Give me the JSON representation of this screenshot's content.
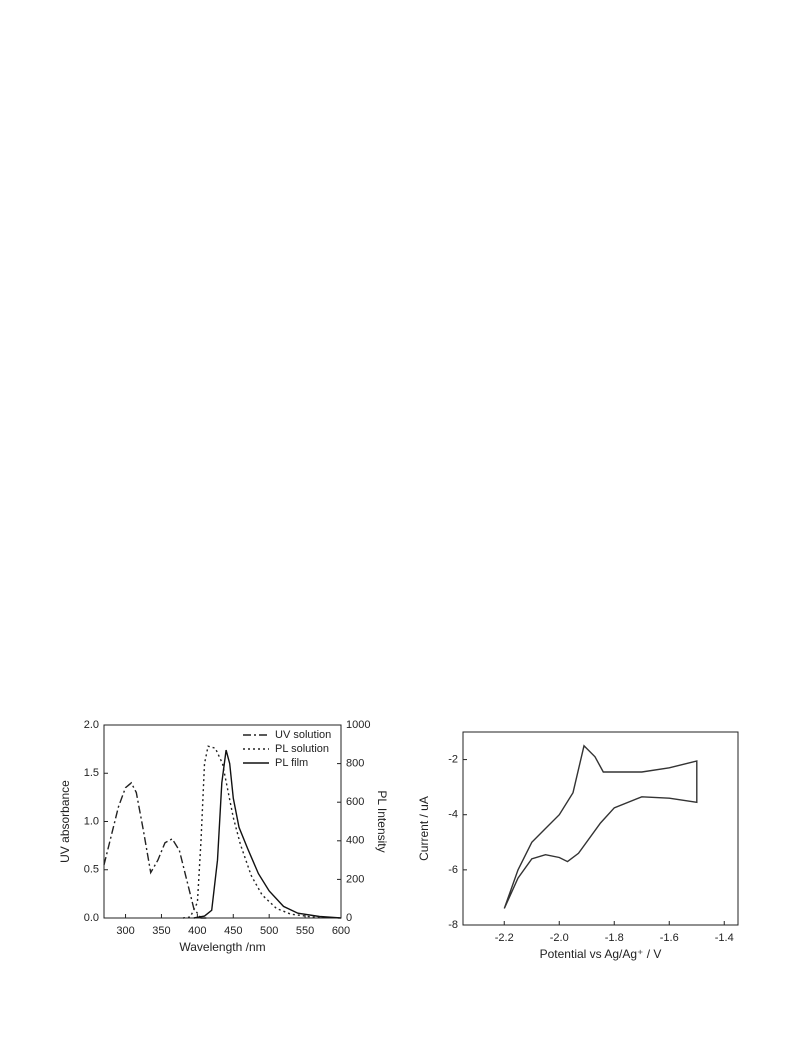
{
  "chart_data": [
    {
      "type": "line",
      "xlabel": "Wavelength /nm",
      "ylabel": "UV absorbance",
      "y2label": "PL Intensity",
      "xlim": [
        270,
        600
      ],
      "xticks": [
        300,
        350,
        400,
        450,
        500,
        550,
        600
      ],
      "ylim": [
        0,
        2
      ],
      "yticks": [
        {
          "value": 0,
          "label": "0.0"
        },
        {
          "value": 0.5,
          "label": "0.5"
        },
        {
          "value": 1,
          "label": "1.0"
        },
        {
          "value": 1.5,
          "label": "1.5"
        },
        {
          "value": 2,
          "label": "2.0"
        }
      ],
      "y2lim": [
        0,
        1000
      ],
      "y2ticks": [
        0,
        200,
        400,
        600,
        800,
        1000
      ],
      "legend": "upper right",
      "series": [
        {
          "name": "UV solution",
          "color": "#222222",
          "dash": "dashdot",
          "x": [
            270,
            280,
            290,
            300,
            308,
            315,
            325,
            335,
            345,
            355,
            365,
            375,
            385,
            395,
            405,
            415
          ],
          "values": [
            0.55,
            0.85,
            1.15,
            1.35,
            1.4,
            1.3,
            0.9,
            0.47,
            0.6,
            0.78,
            0.82,
            0.7,
            0.4,
            0.1,
            0.0,
            0.0
          ]
        },
        {
          "name": "PL solution",
          "color": "#222222",
          "dash": "dotted",
          "axis": "y2",
          "x": [
            380,
            390,
            400,
            405,
            410,
            415,
            425,
            435,
            450,
            460,
            475,
            490,
            510,
            530,
            560,
            600
          ],
          "values": [
            0,
            5,
            80,
            400,
            800,
            890,
            880,
            800,
            520,
            380,
            220,
            120,
            50,
            20,
            5,
            0
          ]
        },
        {
          "name": "PL film",
          "color": "#111111",
          "dash": "solid",
          "axis": "y2",
          "x": [
            395,
            410,
            420,
            428,
            434,
            440,
            445,
            450,
            458,
            470,
            485,
            500,
            520,
            540,
            570,
            600
          ],
          "values": [
            0,
            10,
            40,
            300,
            700,
            870,
            800,
            620,
            470,
            360,
            230,
            140,
            60,
            25,
            8,
            0
          ]
        }
      ]
    },
    {
      "type": "line",
      "xlabel": "Potential vs Ag/Ag⁺ / V",
      "ylabel": "Current / uA",
      "xlim": [
        -2.35,
        -1.35
      ],
      "xticks": [
        -2.2,
        {
          "value": -2.0,
          "label": "-2.0"
        },
        -1.8,
        -1.6,
        -1.4
      ],
      "ylim": [
        -8,
        -1
      ],
      "yticks": [
        -8,
        -6,
        -4,
        -2
      ],
      "series": [
        {
          "color": "#333333",
          "dash": "solid",
          "x": [
            -2.2,
            -2.15,
            -2.1,
            -2.05,
            -2.0,
            -1.95,
            -1.91,
            -1.87,
            -1.84,
            -1.8,
            -1.7,
            -1.6,
            -1.5,
            -1.5,
            -1.6,
            -1.7,
            -1.8,
            -1.85,
            -1.93,
            -1.97,
            -2.0,
            -2.05,
            -2.1,
            -2.15,
            -2.2
          ],
          "values": [
            -7.4,
            -6.0,
            -5.0,
            -4.5,
            -4.0,
            -3.2,
            -1.5,
            -1.9,
            -2.45,
            -2.45,
            -2.45,
            -2.3,
            -2.05,
            -3.55,
            -3.4,
            -3.35,
            -3.75,
            -4.3,
            -5.4,
            -5.7,
            -5.55,
            -5.45,
            -5.6,
            -6.3,
            -7.4
          ]
        }
      ]
    }
  ]
}
